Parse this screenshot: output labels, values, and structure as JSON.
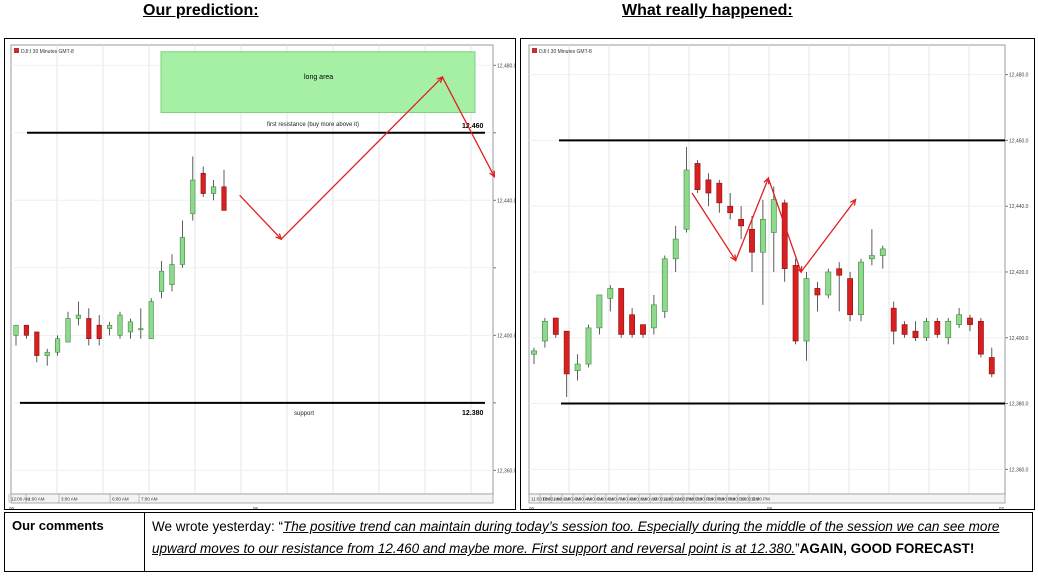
{
  "headings": {
    "left": "Our prediction:",
    "right": "What really happened:"
  },
  "chart_data": [
    {
      "type": "candlestick",
      "chart_label": "DJI:I 30 Minutes GMT-8",
      "ylim": [
        12353,
        12486
      ],
      "yticks": [
        12360,
        12380,
        12400,
        12420,
        12440,
        12460,
        12480
      ],
      "ytick_labels": [
        "12,360.0",
        "",
        "12,400.0",
        "",
        "12,440.0",
        "",
        "12,480.0"
      ],
      "xtick_labels": [
        "12:00 AM",
        "1:00 AM",
        "3:00 AM",
        "6:00 AM",
        "7:00 AM"
      ],
      "date_labels": [
        "06",
        "06"
      ],
      "candles": [
        {
          "o": 12400,
          "h": 12403,
          "l": 12397,
          "c": 12403
        },
        {
          "o": 12403,
          "h": 12403,
          "l": 12399,
          "c": 12400
        },
        {
          "o": 12401,
          "h": 12401,
          "l": 12392,
          "c": 12394
        },
        {
          "o": 12394,
          "h": 12396,
          "l": 12391,
          "c": 12395
        },
        {
          "o": 12395,
          "h": 12400,
          "l": 12394,
          "c": 12399
        },
        {
          "o": 12398,
          "h": 12407,
          "l": 12398,
          "c": 12405
        },
        {
          "o": 12405,
          "h": 12410,
          "l": 12403,
          "c": 12406
        },
        {
          "o": 12405,
          "h": 12408,
          "l": 12397,
          "c": 12399
        },
        {
          "o": 12403,
          "h": 12406,
          "l": 12397,
          "c": 12399
        },
        {
          "o": 12402,
          "h": 12404,
          "l": 12400,
          "c": 12403
        },
        {
          "o": 12400,
          "h": 12407,
          "l": 12399,
          "c": 12406
        },
        {
          "o": 12401,
          "h": 12405,
          "l": 12399,
          "c": 12404
        },
        {
          "o": 12402,
          "h": 12408,
          "l": 12399,
          "c": 12402
        },
        {
          "o": 12399,
          "h": 12411,
          "l": 12399,
          "c": 12410
        },
        {
          "o": 12413,
          "h": 12422,
          "l": 12411,
          "c": 12419
        },
        {
          "o": 12415,
          "h": 12424,
          "l": 12413,
          "c": 12421
        },
        {
          "o": 12421,
          "h": 12434,
          "l": 12420,
          "c": 12429
        },
        {
          "o": 12436,
          "h": 12453,
          "l": 12434,
          "c": 12446
        },
        {
          "o": 12448,
          "h": 12450,
          "l": 12441,
          "c": 12442
        },
        {
          "o": 12442,
          "h": 12446,
          "l": 12440,
          "c": 12444
        },
        {
          "o": 12444,
          "h": 12449,
          "l": 12437,
          "c": 12437
        }
      ],
      "hlines": [
        {
          "y": 12460,
          "label": "12.460",
          "text": "first resistance (buy more above it)"
        },
        {
          "y": 12380,
          "label": "12.380",
          "text": "support"
        }
      ],
      "zone": {
        "y_from": 12466,
        "y_to": 12484,
        "label": "long area"
      },
      "arrow_path": [
        [
          21.5,
          12441.5
        ],
        [
          25.5,
          12428.5
        ],
        [
          41,
          12476.5
        ],
        [
          46,
          12447
        ]
      ]
    },
    {
      "type": "candlestick",
      "chart_label": "DJI:I 30 Minutes GMT-8",
      "ylim": [
        12352.5,
        12489
      ],
      "yticks": [
        12360,
        12380,
        12400,
        12420,
        12440,
        12460,
        12480
      ],
      "ytick_labels": [
        "12,360.0",
        "12,380.0",
        "12,400.0",
        "12,420.0",
        "12,440.0",
        "12,460.0",
        "12,480.0"
      ],
      "xtick_labels": [
        "11:00 PM",
        "12:00 AM",
        "1:00 AM",
        "2:00 AM",
        "3:00 AM",
        "4:00 AM",
        "5:00 AM",
        "6:00 AM",
        "7:00 AM",
        "8:00 AM",
        "9:00 AM",
        "10:00 AM",
        "11:00 AM",
        "12:00 PM",
        "1:00 PM",
        "2:00 PM",
        "3:00 PM",
        "8:00 PM",
        "9:00 PM",
        "10:00 PM",
        "11:00 PM"
      ],
      "date_labels": [
        "06",
        "08",
        "07"
      ],
      "candles": [
        {
          "o": 12395,
          "h": 12397,
          "l": 12392,
          "c": 12396
        },
        {
          "o": 12399,
          "h": 12406,
          "l": 12397,
          "c": 12405
        },
        {
          "o": 12406,
          "h": 12406,
          "l": 12400,
          "c": 12401
        },
        {
          "o": 12402,
          "h": 12402,
          "l": 12382,
          "c": 12389
        },
        {
          "o": 12390,
          "h": 12395,
          "l": 12387,
          "c": 12392
        },
        {
          "o": 12392,
          "h": 12404,
          "l": 12391,
          "c": 12403
        },
        {
          "o": 12403,
          "h": 12413,
          "l": 12401,
          "c": 12413
        },
        {
          "o": 12412,
          "h": 12416,
          "l": 12408,
          "c": 12415
        },
        {
          "o": 12415,
          "h": 12415,
          "l": 12400,
          "c": 12401
        },
        {
          "o": 12407,
          "h": 12409,
          "l": 12400,
          "c": 12401
        },
        {
          "o": 12404,
          "h": 12404,
          "l": 12400,
          "c": 12401
        },
        {
          "o": 12403,
          "h": 12413,
          "l": 12401,
          "c": 12410
        },
        {
          "o": 12408,
          "h": 12425,
          "l": 12406,
          "c": 12424
        },
        {
          "o": 12424,
          "h": 12434,
          "l": 12420,
          "c": 12430
        },
        {
          "o": 12433,
          "h": 12458,
          "l": 12432,
          "c": 12451
        },
        {
          "o": 12453,
          "h": 12454,
          "l": 12444,
          "c": 12445
        },
        {
          "o": 12448,
          "h": 12450,
          "l": 12440,
          "c": 12444
        },
        {
          "o": 12447,
          "h": 12448,
          "l": 12438,
          "c": 12441
        },
        {
          "o": 12440,
          "h": 12444,
          "l": 12436,
          "c": 12438
        },
        {
          "o": 12436,
          "h": 12440,
          "l": 12430,
          "c": 12434
        },
        {
          "o": 12433,
          "h": 12437,
          "l": 12420,
          "c": 12426
        },
        {
          "o": 12426,
          "h": 12442,
          "l": 12410,
          "c": 12436
        },
        {
          "o": 12432,
          "h": 12446,
          "l": 12420,
          "c": 12442
        },
        {
          "o": 12441,
          "h": 12442,
          "l": 12417,
          "c": 12421
        },
        {
          "o": 12422,
          "h": 12424,
          "l": 12398,
          "c": 12399
        },
        {
          "o": 12399,
          "h": 12420,
          "l": 12393,
          "c": 12418
        },
        {
          "o": 12415,
          "h": 12417,
          "l": 12408,
          "c": 12413
        },
        {
          "o": 12413,
          "h": 12421,
          "l": 12412,
          "c": 12420
        },
        {
          "o": 12421,
          "h": 12423,
          "l": 12408,
          "c": 12419
        },
        {
          "o": 12418,
          "h": 12420,
          "l": 12405,
          "c": 12407
        },
        {
          "o": 12407,
          "h": 12424,
          "l": 12405,
          "c": 12423
        },
        {
          "o": 12424,
          "h": 12433,
          "l": 12422,
          "c": 12425
        },
        {
          "o": 12425,
          "h": 12428,
          "l": 12421,
          "c": 12427
        },
        {
          "o": 12409,
          "h": 12411,
          "l": 12398,
          "c": 12402
        },
        {
          "o": 12404,
          "h": 12405,
          "l": 12400,
          "c": 12401
        },
        {
          "o": 12402,
          "h": 12405,
          "l": 12399,
          "c": 12400
        },
        {
          "o": 12400,
          "h": 12406,
          "l": 12399,
          "c": 12405
        },
        {
          "o": 12405,
          "h": 12406,
          "l": 12400,
          "c": 12401
        },
        {
          "o": 12400,
          "h": 12406,
          "l": 12398,
          "c": 12405
        },
        {
          "o": 12404,
          "h": 12409,
          "l": 12403,
          "c": 12407
        },
        {
          "o": 12406,
          "h": 12407,
          "l": 12402,
          "c": 12404
        },
        {
          "o": 12405,
          "h": 12406,
          "l": 12394,
          "c": 12395
        },
        {
          "o": 12394,
          "h": 12397,
          "l": 12388,
          "c": 12389
        }
      ],
      "hlines": [
        {
          "y": 12460
        },
        {
          "y": 12380
        }
      ],
      "arrow_path": [
        [
          14.5,
          12444
        ],
        [
          18.5,
          12423.5
        ],
        [
          21.5,
          12448.5
        ],
        [
          24.5,
          12420
        ],
        [
          29.5,
          12442
        ]
      ]
    }
  ],
  "comments": {
    "label": "Our comments",
    "intro": "We wrote yesterday: “",
    "quote": "The positive trend can maintain during today’s session too. Especially during the middle of the session we can see more upward moves to our resistance from 12.460 and maybe more. First support and reversal point is at 12.380.",
    "closing": "”",
    "emphasis": "AGAIN, GOOD FORECAST!"
  },
  "colors": {
    "up_candle": "#8fd98f",
    "down_candle": "#d82020",
    "arrow": "#e02020",
    "zone_fill": "#a6f0a6"
  }
}
